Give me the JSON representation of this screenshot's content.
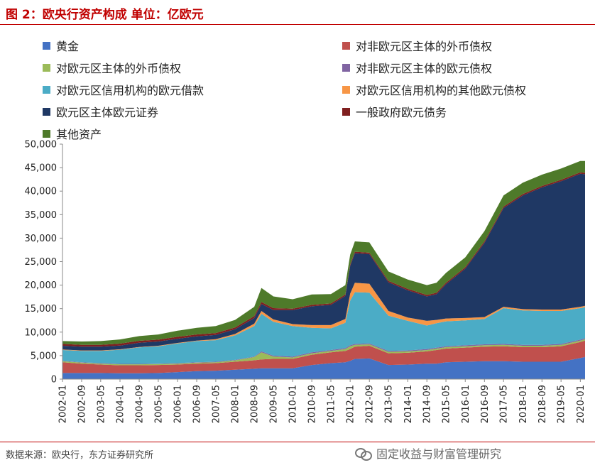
{
  "header": {
    "title": "图 2：欧央行资产构成  单位：亿欧元"
  },
  "footer": {
    "source": "数据来源：欧央行，东方证券研究所",
    "watermark": "固定收益与财富管理研究"
  },
  "chart_data": {
    "type": "area",
    "stacked": true,
    "title": "",
    "xlabel": "",
    "ylabel": "",
    "ylim": [
      0,
      50000
    ],
    "yticks": [
      0,
      5000,
      10000,
      15000,
      20000,
      25000,
      30000,
      35000,
      40000,
      45000,
      50000
    ],
    "ytick_labels": [
      "0",
      "5,000",
      "10,000",
      "15,000",
      "20,000",
      "25,000",
      "30,000",
      "35,000",
      "40,000",
      "45,000",
      "50,000"
    ],
    "xtick_labels": [
      "2002-01",
      "2002-09",
      "2003-05",
      "2004-01",
      "2004-09",
      "2005-05",
      "2006-01",
      "2006-09",
      "2007-05",
      "2008-01",
      "2008-09",
      "2009-05",
      "2010-01",
      "2010-09",
      "2011-05",
      "2012-01",
      "2012-09",
      "2013-05",
      "2014-01",
      "2014-09",
      "2015-05",
      "2016-01",
      "2016-09",
      "2017-05",
      "2018-01",
      "2018-09",
      "2019-05",
      "2020-01"
    ],
    "x": [
      "2002-01",
      "2002-09",
      "2003-05",
      "2004-01",
      "2004-09",
      "2005-05",
      "2006-01",
      "2006-09",
      "2007-05",
      "2008-01",
      "2008-09",
      "2008-12",
      "2009-05",
      "2010-01",
      "2010-09",
      "2011-05",
      "2011-11",
      "2012-01",
      "2012-03",
      "2012-09",
      "2013-05",
      "2014-01",
      "2014-09",
      "2015-01",
      "2015-05",
      "2016-01",
      "2016-09",
      "2017-05",
      "2018-01",
      "2018-09",
      "2019-05",
      "2020-01",
      "2020-03"
    ],
    "legend_position": "top",
    "grid": false,
    "series": [
      {
        "name": "黄金",
        "color": "#4472c4",
        "values": [
          1300,
          1300,
          1300,
          1250,
          1250,
          1300,
          1500,
          1700,
          1800,
          2000,
          2200,
          2300,
          2300,
          2300,
          3000,
          3400,
          3600,
          3900,
          4300,
          4400,
          3000,
          3100,
          3300,
          3300,
          3600,
          3700,
          3800,
          3800,
          3700,
          3700,
          3700,
          4500,
          4700
        ]
      },
      {
        "name": "对非欧元区主体的外币债权",
        "color": "#c0504d",
        "values": [
          2300,
          2000,
          1800,
          1700,
          1700,
          1700,
          1600,
          1600,
          1600,
          1700,
          1800,
          1900,
          2000,
          2000,
          2200,
          2300,
          2400,
          2500,
          2600,
          2700,
          2500,
          2500,
          2600,
          2900,
          2900,
          3000,
          3100,
          3200,
          3100,
          3100,
          3300,
          3400,
          3500
        ]
      },
      {
        "name": "对欧元区主体的外币债权",
        "color": "#9bbb59",
        "values": [
          200,
          200,
          200,
          200,
          200,
          200,
          200,
          200,
          200,
          300,
          700,
          1500,
          500,
          300,
          300,
          300,
          400,
          600,
          400,
          300,
          300,
          300,
          300,
          300,
          300,
          300,
          300,
          300,
          300,
          300,
          300,
          300,
          300
        ]
      },
      {
        "name": "对非欧元区主体的欧元债权",
        "color": "#8064a2",
        "values": [
          100,
          100,
          100,
          100,
          100,
          100,
          100,
          100,
          100,
          100,
          100,
          200,
          200,
          200,
          200,
          200,
          200,
          200,
          200,
          200,
          200,
          200,
          200,
          200,
          200,
          200,
          200,
          200,
          200,
          200,
          200,
          200,
          200
        ]
      },
      {
        "name": "对欧元区信用机构的欧元借款",
        "color": "#4bacc6",
        "values": [
          2300,
          2400,
          2600,
          3000,
          3500,
          3700,
          4200,
          4500,
          4600,
          5200,
          6500,
          8000,
          7200,
          6500,
          5200,
          4600,
          5400,
          9500,
          11000,
          10800,
          7500,
          6300,
          5000,
          5200,
          5300,
          5300,
          5400,
          7600,
          7300,
          7200,
          7000,
          6700,
          6600
        ]
      },
      {
        "name": "对欧元区信用机构的其他欧元债权",
        "color": "#f79646",
        "values": [
          100,
          100,
          100,
          100,
          100,
          100,
          100,
          100,
          200,
          300,
          500,
          600,
          500,
          400,
          600,
          700,
          800,
          1500,
          2000,
          1900,
          1000,
          700,
          1000,
          700,
          600,
          500,
          400,
          300,
          300,
          300,
          300,
          300,
          300
        ]
      },
      {
        "name": "欧元区主体欧元证券",
        "color": "#1f3864",
        "values": [
          800,
          800,
          800,
          800,
          900,
          900,
          900,
          900,
          900,
          1000,
          1200,
          1500,
          2000,
          3000,
          4000,
          4300,
          4900,
          5900,
          6300,
          6300,
          6100,
          5800,
          5200,
          5500,
          7300,
          10500,
          15800,
          21000,
          24200,
          26000,
          27300,
          28300,
          28000
        ]
      },
      {
        "name": "一般政府欧元债务",
        "color": "#7f1f1f",
        "values": [
          400,
          400,
          400,
          400,
          400,
          400,
          400,
          400,
          400,
          400,
          400,
          400,
          400,
          300,
          300,
          300,
          300,
          300,
          300,
          300,
          300,
          300,
          300,
          300,
          300,
          300,
          300,
          300,
          300,
          300,
          300,
          300,
          300
        ]
      },
      {
        "name": "其他资产",
        "color": "#4e7a2a",
        "values": [
          600,
          700,
          800,
          900,
          1000,
          1100,
          1300,
          1400,
          1500,
          1600,
          2000,
          3000,
          2500,
          2000,
          2200,
          2000,
          2000,
          2100,
          2200,
          2200,
          2000,
          2000,
          2100,
          2100,
          2100,
          2100,
          2200,
          2400,
          2400,
          2400,
          2400,
          2400,
          2500
        ]
      }
    ]
  }
}
